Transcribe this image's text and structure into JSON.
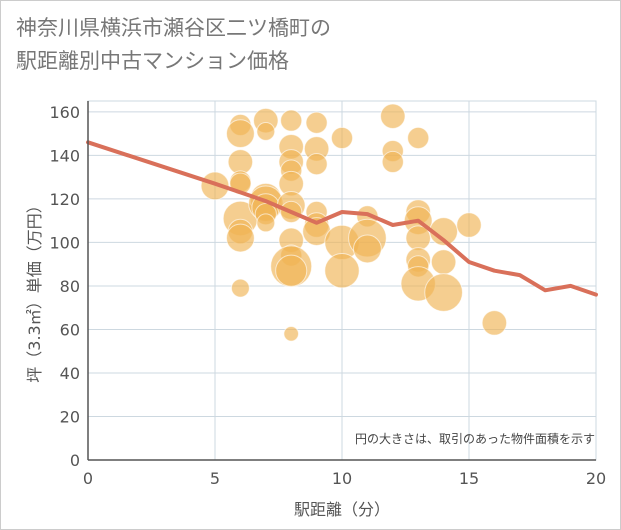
{
  "title": "神奈川県横浜市瀬谷区二ツ橋町の駅距離別中古マンション価格",
  "chart_data": {
    "type": "scatter",
    "title": "神奈川県横浜市瀬谷区二ツ橋町の駅距離別中古マンション価格",
    "xlabel": "駅距離（分）",
    "ylabel": "坪（3.3㎡）単価（万円）",
    "xlim": [
      0,
      20
    ],
    "ylim": [
      0,
      165
    ],
    "xticks": [
      0,
      5,
      10,
      15,
      20
    ],
    "yticks": [
      0,
      20,
      40,
      60,
      80,
      100,
      120,
      140,
      160
    ],
    "grid": true,
    "annotation": "円の大きさは、取引のあった物件面積を示す",
    "colors": {
      "bubble": "#f0b455",
      "trend": "#d9705a",
      "grid": "#cdd8e0",
      "axis": "#555555"
    },
    "points": [
      {
        "x": 5,
        "y": 126,
        "s": 3
      },
      {
        "x": 6,
        "y": 154,
        "s": 2
      },
      {
        "x": 6,
        "y": 150,
        "s": 3
      },
      {
        "x": 6,
        "y": 137,
        "s": 2.5
      },
      {
        "x": 6,
        "y": 128,
        "s": 2
      },
      {
        "x": 6,
        "y": 127,
        "s": 2
      },
      {
        "x": 6,
        "y": 111,
        "s": 4
      },
      {
        "x": 6,
        "y": 105,
        "s": 2.5
      },
      {
        "x": 6,
        "y": 102,
        "s": 3
      },
      {
        "x": 6,
        "y": 79,
        "s": 1.5
      },
      {
        "x": 7,
        "y": 156,
        "s": 2.5
      },
      {
        "x": 7,
        "y": 151,
        "s": 1.5
      },
      {
        "x": 7,
        "y": 120,
        "s": 3.5
      },
      {
        "x": 7,
        "y": 118,
        "s": 4
      },
      {
        "x": 7,
        "y": 116,
        "s": 3
      },
      {
        "x": 7,
        "y": 113,
        "s": 2
      },
      {
        "x": 7,
        "y": 109,
        "s": 1.5
      },
      {
        "x": 8,
        "y": 156,
        "s": 2
      },
      {
        "x": 8,
        "y": 144,
        "s": 2.5
      },
      {
        "x": 8,
        "y": 137,
        "s": 2.5
      },
      {
        "x": 8,
        "y": 133,
        "s": 2
      },
      {
        "x": 8,
        "y": 127,
        "s": 2.5
      },
      {
        "x": 8,
        "y": 117,
        "s": 3
      },
      {
        "x": 8,
        "y": 114,
        "s": 2
      },
      {
        "x": 8,
        "y": 101,
        "s": 2.5
      },
      {
        "x": 8,
        "y": 94,
        "s": 2
      },
      {
        "x": 8,
        "y": 89,
        "s": 5
      },
      {
        "x": 8,
        "y": 87,
        "s": 3.5
      },
      {
        "x": 8,
        "y": 58,
        "s": 1
      },
      {
        "x": 9,
        "y": 155,
        "s": 2
      },
      {
        "x": 9,
        "y": 143,
        "s": 2.5
      },
      {
        "x": 9,
        "y": 136,
        "s": 2
      },
      {
        "x": 9,
        "y": 114,
        "s": 2
      },
      {
        "x": 9,
        "y": 108,
        "s": 2.5
      },
      {
        "x": 9,
        "y": 105,
        "s": 3
      },
      {
        "x": 10,
        "y": 148,
        "s": 2
      },
      {
        "x": 10,
        "y": 100,
        "s": 4
      },
      {
        "x": 10,
        "y": 87,
        "s": 4
      },
      {
        "x": 11,
        "y": 112,
        "s": 2
      },
      {
        "x": 11,
        "y": 102,
        "s": 4.5
      },
      {
        "x": 11,
        "y": 97,
        "s": 3
      },
      {
        "x": 12,
        "y": 158,
        "s": 2.5
      },
      {
        "x": 12,
        "y": 142,
        "s": 2
      },
      {
        "x": 12,
        "y": 137,
        "s": 2
      },
      {
        "x": 13,
        "y": 148,
        "s": 2
      },
      {
        "x": 13,
        "y": 114,
        "s": 2.5
      },
      {
        "x": 13,
        "y": 110,
        "s": 3
      },
      {
        "x": 13,
        "y": 102,
        "s": 2.5
      },
      {
        "x": 13,
        "y": 92,
        "s": 2.5
      },
      {
        "x": 13,
        "y": 89,
        "s": 2
      },
      {
        "x": 13,
        "y": 81,
        "s": 4
      },
      {
        "x": 14,
        "y": 105,
        "s": 3
      },
      {
        "x": 14,
        "y": 91,
        "s": 2.5
      },
      {
        "x": 14,
        "y": 77,
        "s": 4.5
      },
      {
        "x": 15,
        "y": 108,
        "s": 2.5
      },
      {
        "x": 16,
        "y": 63,
        "s": 2.5
      }
    ],
    "series": [
      {
        "name": "trend",
        "x": [
          0,
          5,
          6,
          7,
          8,
          9,
          10,
          11,
          12,
          13,
          14,
          15,
          16,
          17,
          18,
          19,
          20
        ],
        "y": [
          146,
          127,
          123,
          119,
          114,
          109,
          114,
          113,
          108,
          110,
          101,
          91,
          87,
          85,
          78,
          80,
          76
        ]
      }
    ]
  }
}
